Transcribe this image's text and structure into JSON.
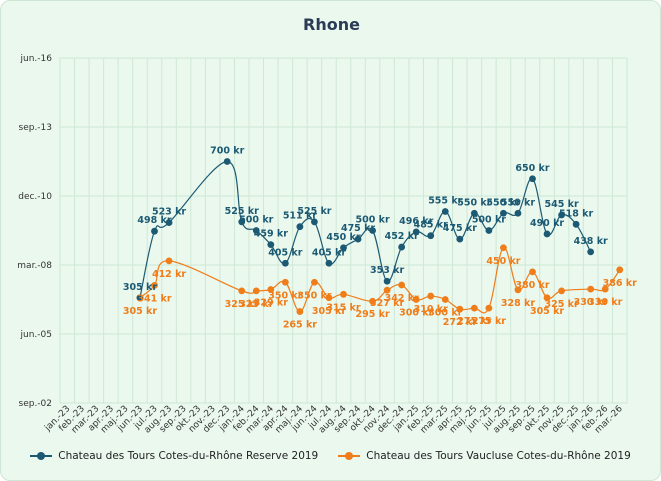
{
  "chart_data": {
    "type": "line",
    "title": "Rhone",
    "x": [
      "jan.-23",
      "feb.-23",
      "mar.-23",
      "apr.-23",
      "maj.-23",
      "jun.-23",
      "jul.-23",
      "aug.-23",
      "sep.-23",
      "okt.-23",
      "nov.-23",
      "dec.-23",
      "jan.-24",
      "feb.-24",
      "mar.-24",
      "apr.-24",
      "maj.-24",
      "jun.-24",
      "jul.-24",
      "aug.-24",
      "sep.-24",
      "okt.-24",
      "nov.-24",
      "dec.-24",
      "jan.-25",
      "feb.-25",
      "mar.-25",
      "apr.-25",
      "maj.-25",
      "jun.-25",
      "jul.-25",
      "aug.-25",
      "sep.-25",
      "okt.-25",
      "nov.-25",
      "dec.-25",
      "jan.-26",
      "feb.-26",
      "mar.-26"
    ],
    "y_ticks": [
      "jun.-16",
      "sep.-13",
      "dec.-10",
      "mar.-08",
      "jun.-05",
      "sep.-02"
    ],
    "ylim": [
      0,
      1000
    ],
    "series": [
      {
        "name": "Chateau des Tours Cotes-du-Rhône Reserve 2019",
        "color": "#1c5a73",
        "points": [
          {
            "x": 5.5,
            "value": 305,
            "label": "305 kr"
          },
          {
            "x": 6.5,
            "value": 498,
            "label": "498 kr"
          },
          {
            "x": 7.5,
            "value": 523,
            "label": "523 kr"
          },
          {
            "x": 11.5,
            "value": 700,
            "label": "700 kr"
          },
          {
            "x": 12.5,
            "value": 525,
            "label": "525 kr"
          },
          {
            "x": 13.5,
            "value": 500,
            "label": "500 kr"
          },
          {
            "x": 14.5,
            "value": 459,
            "label": "459 kr"
          },
          {
            "x": 15.5,
            "value": 405,
            "label": "405 kr"
          },
          {
            "x": 16.5,
            "value": 511,
            "label": "511 kr"
          },
          {
            "x": 17.5,
            "value": 525,
            "label": "525 kr"
          },
          {
            "x": 18.5,
            "value": 405,
            "label": "405 kr"
          },
          {
            "x": 19.5,
            "value": 450,
            "label": "450 kr"
          },
          {
            "x": 20.5,
            "value": 475,
            "label": "475 kr"
          },
          {
            "x": 21.5,
            "value": 500,
            "label": "500 kr"
          },
          {
            "x": 22.5,
            "value": 353,
            "label": "353 kr"
          },
          {
            "x": 23.5,
            "value": 452,
            "label": "452 kr"
          },
          {
            "x": 24.5,
            "value": 496,
            "label": "496 kr"
          },
          {
            "x": 25.5,
            "value": 485,
            "label": "485 kr"
          },
          {
            "x": 26.5,
            "value": 555,
            "label": "555 kr"
          },
          {
            "x": 27.5,
            "value": 475,
            "label": "475 kr"
          },
          {
            "x": 28.5,
            "value": 550,
            "label": "550 kr"
          },
          {
            "x": 29.5,
            "value": 500,
            "label": "500 kr"
          },
          {
            "x": 30.5,
            "value": 550,
            "label": "550 kr"
          },
          {
            "x": 31.5,
            "value": 550,
            "label": "550 kr"
          },
          {
            "x": 32.5,
            "value": 650,
            "label": "650 kr"
          },
          {
            "x": 33.5,
            "value": 490,
            "label": "490 kr"
          },
          {
            "x": 34.5,
            "value": 545,
            "label": "545 kr"
          },
          {
            "x": 35.5,
            "value": 518,
            "label": "518 kr"
          },
          {
            "x": 36.5,
            "value": 438,
            "label": "438 kr"
          }
        ]
      },
      {
        "name": "Chateau des Tours Vaucluse Cotes-du-Rhône 2019",
        "color": "#ef7d1a",
        "points": [
          {
            "x": 5.5,
            "value": 305,
            "label": "305 kr"
          },
          {
            "x": 6.5,
            "value": 341,
            "label": "341 kr"
          },
          {
            "x": 7.5,
            "value": 412,
            "label": "412 kr"
          },
          {
            "x": 12.5,
            "value": 325,
            "label": "325 kr"
          },
          {
            "x": 13.5,
            "value": 325,
            "label": "325 kr"
          },
          {
            "x": 14.5,
            "value": 329,
            "label": "329 kr"
          },
          {
            "x": 15.5,
            "value": 350,
            "label": "350 kr"
          },
          {
            "x": 16.5,
            "value": 265,
            "label": "265 kr"
          },
          {
            "x": 17.5,
            "value": 350,
            "label": "350 kr"
          },
          {
            "x": 18.5,
            "value": 305,
            "label": "305 kr"
          },
          {
            "x": 19.5,
            "value": 315,
            "label": "315 kr"
          },
          {
            "x": 21.5,
            "value": 295,
            "label": "295 kr"
          },
          {
            "x": 22.5,
            "value": 327,
            "label": "327 kr"
          },
          {
            "x": 23.5,
            "value": 342,
            "label": "342 kr"
          },
          {
            "x": 24.5,
            "value": 300,
            "label": "300 kr"
          },
          {
            "x": 25.5,
            "value": 310,
            "label": "310 kr"
          },
          {
            "x": 26.5,
            "value": 300,
            "label": "300 kr"
          },
          {
            "x": 27.5,
            "value": 272,
            "label": "272 kr"
          },
          {
            "x": 28.5,
            "value": 275,
            "label": "275 kr"
          },
          {
            "x": 29.5,
            "value": 275,
            "label": "275 kr"
          },
          {
            "x": 30.5,
            "value": 450,
            "label": "450 kr"
          },
          {
            "x": 31.5,
            "value": 328,
            "label": "328 kr"
          },
          {
            "x": 32.5,
            "value": 380,
            "label": "380 kr"
          },
          {
            "x": 33.5,
            "value": 305,
            "label": "305 kr"
          },
          {
            "x": 34.5,
            "value": 325,
            "label": "325 kr"
          },
          {
            "x": 36.5,
            "value": 330,
            "label": "330 kr"
          },
          {
            "x": 37.5,
            "value": 330,
            "label": "330 kr"
          },
          {
            "x": 38.5,
            "value": 386,
            "label": "386 kr"
          }
        ]
      }
    ],
    "grid": true,
    "legend_position": "bottom"
  }
}
